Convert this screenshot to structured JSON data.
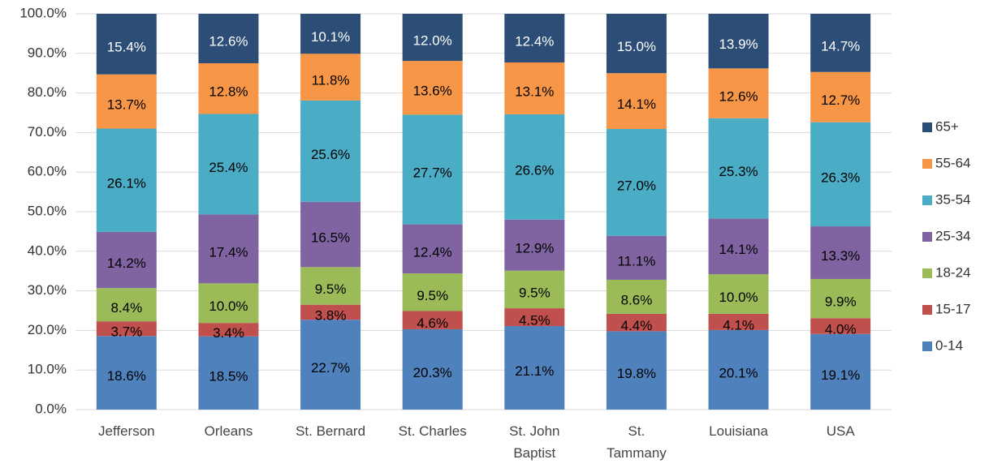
{
  "chart_data": {
    "type": "stacked_bar",
    "categories": [
      "Jefferson",
      "Orleans",
      "St. Bernard",
      "St. Charles",
      "St. John Baptist",
      "St. Tammany",
      "Louisiana",
      "USA"
    ],
    "series": [
      {
        "name": "0-14",
        "color": "#4f81bd",
        "label_color": "#000000",
        "values": [
          18.6,
          18.5,
          22.7,
          20.3,
          21.1,
          19.8,
          20.1,
          19.1
        ],
        "value_labels": [
          "18.6%",
          "18.5%",
          "22.7%",
          "20.3%",
          "21.1%",
          "19.8%",
          "20.1%",
          "19.1%"
        ]
      },
      {
        "name": "15-17",
        "color": "#c0504d",
        "label_color": "#000000",
        "values": [
          3.7,
          3.4,
          3.8,
          4.6,
          4.5,
          4.4,
          4.1,
          4.0
        ],
        "value_labels": [
          "3.7%",
          "3.4%",
          "3.8%",
          "4.6%",
          "4.5%",
          "4.4%",
          "4.1%",
          "4.0%"
        ]
      },
      {
        "name": "18-24",
        "color": "#9bbb59",
        "label_color": "#000000",
        "values": [
          8.4,
          10.0,
          9.5,
          9.5,
          9.5,
          8.6,
          10.0,
          9.9
        ],
        "value_labels": [
          "8.4%",
          "10.0%",
          "9.5%",
          "9.5%",
          "9.5%",
          "8.6%",
          "10.0%",
          "9.9%"
        ]
      },
      {
        "name": "25-34",
        "color": "#8064a2",
        "label_color": "#000000",
        "values": [
          14.2,
          17.4,
          16.5,
          12.4,
          12.9,
          11.1,
          14.1,
          13.3
        ],
        "value_labels": [
          "14.2%",
          "17.4%",
          "16.5%",
          "12.4%",
          "12.9%",
          "11.1%",
          "14.1%",
          "13.3%"
        ]
      },
      {
        "name": "35-54",
        "color": "#4bacc6",
        "label_color": "#000000",
        "values": [
          26.1,
          25.4,
          25.6,
          27.7,
          26.6,
          27.0,
          25.3,
          26.3
        ],
        "value_labels": [
          "26.1%",
          "25.4%",
          "25.6%",
          "27.7%",
          "26.6%",
          "27.0%",
          "25.3%",
          "26.3%"
        ]
      },
      {
        "name": "55-64",
        "color": "#f79646",
        "label_color": "#000000",
        "values": [
          13.7,
          12.8,
          11.8,
          13.6,
          13.1,
          14.1,
          12.6,
          12.7
        ],
        "value_labels": [
          "13.7%",
          "12.8%",
          "11.8%",
          "13.6%",
          "13.1%",
          "14.1%",
          "12.6%",
          "12.7%"
        ]
      },
      {
        "name": "65+",
        "color": "#2c4d75",
        "label_color": "#ffffff",
        "values": [
          15.4,
          12.6,
          10.1,
          12.0,
          12.4,
          15.0,
          13.9,
          14.7
        ],
        "value_labels": [
          "15.4%",
          "12.6%",
          "10.1%",
          "12.0%",
          "12.4%",
          "15.0%",
          "13.9%",
          "14.7%"
        ]
      }
    ],
    "ylim": [
      0,
      100
    ],
    "yticks": [
      {
        "value": 0,
        "label": "0.0%"
      },
      {
        "value": 10,
        "label": "10.0%"
      },
      {
        "value": 20,
        "label": "20.0%"
      },
      {
        "value": 30,
        "label": "30.0%"
      },
      {
        "value": 40,
        "label": "40.0%"
      },
      {
        "value": 50,
        "label": "50.0%"
      },
      {
        "value": 60,
        "label": "60.0%"
      },
      {
        "value": 70,
        "label": "70.0%"
      },
      {
        "value": 80,
        "label": "80.0%"
      },
      {
        "value": 90,
        "label": "90.0%"
      },
      {
        "value": 100,
        "label": "100.0%"
      }
    ],
    "grid": true,
    "legend": "right"
  }
}
